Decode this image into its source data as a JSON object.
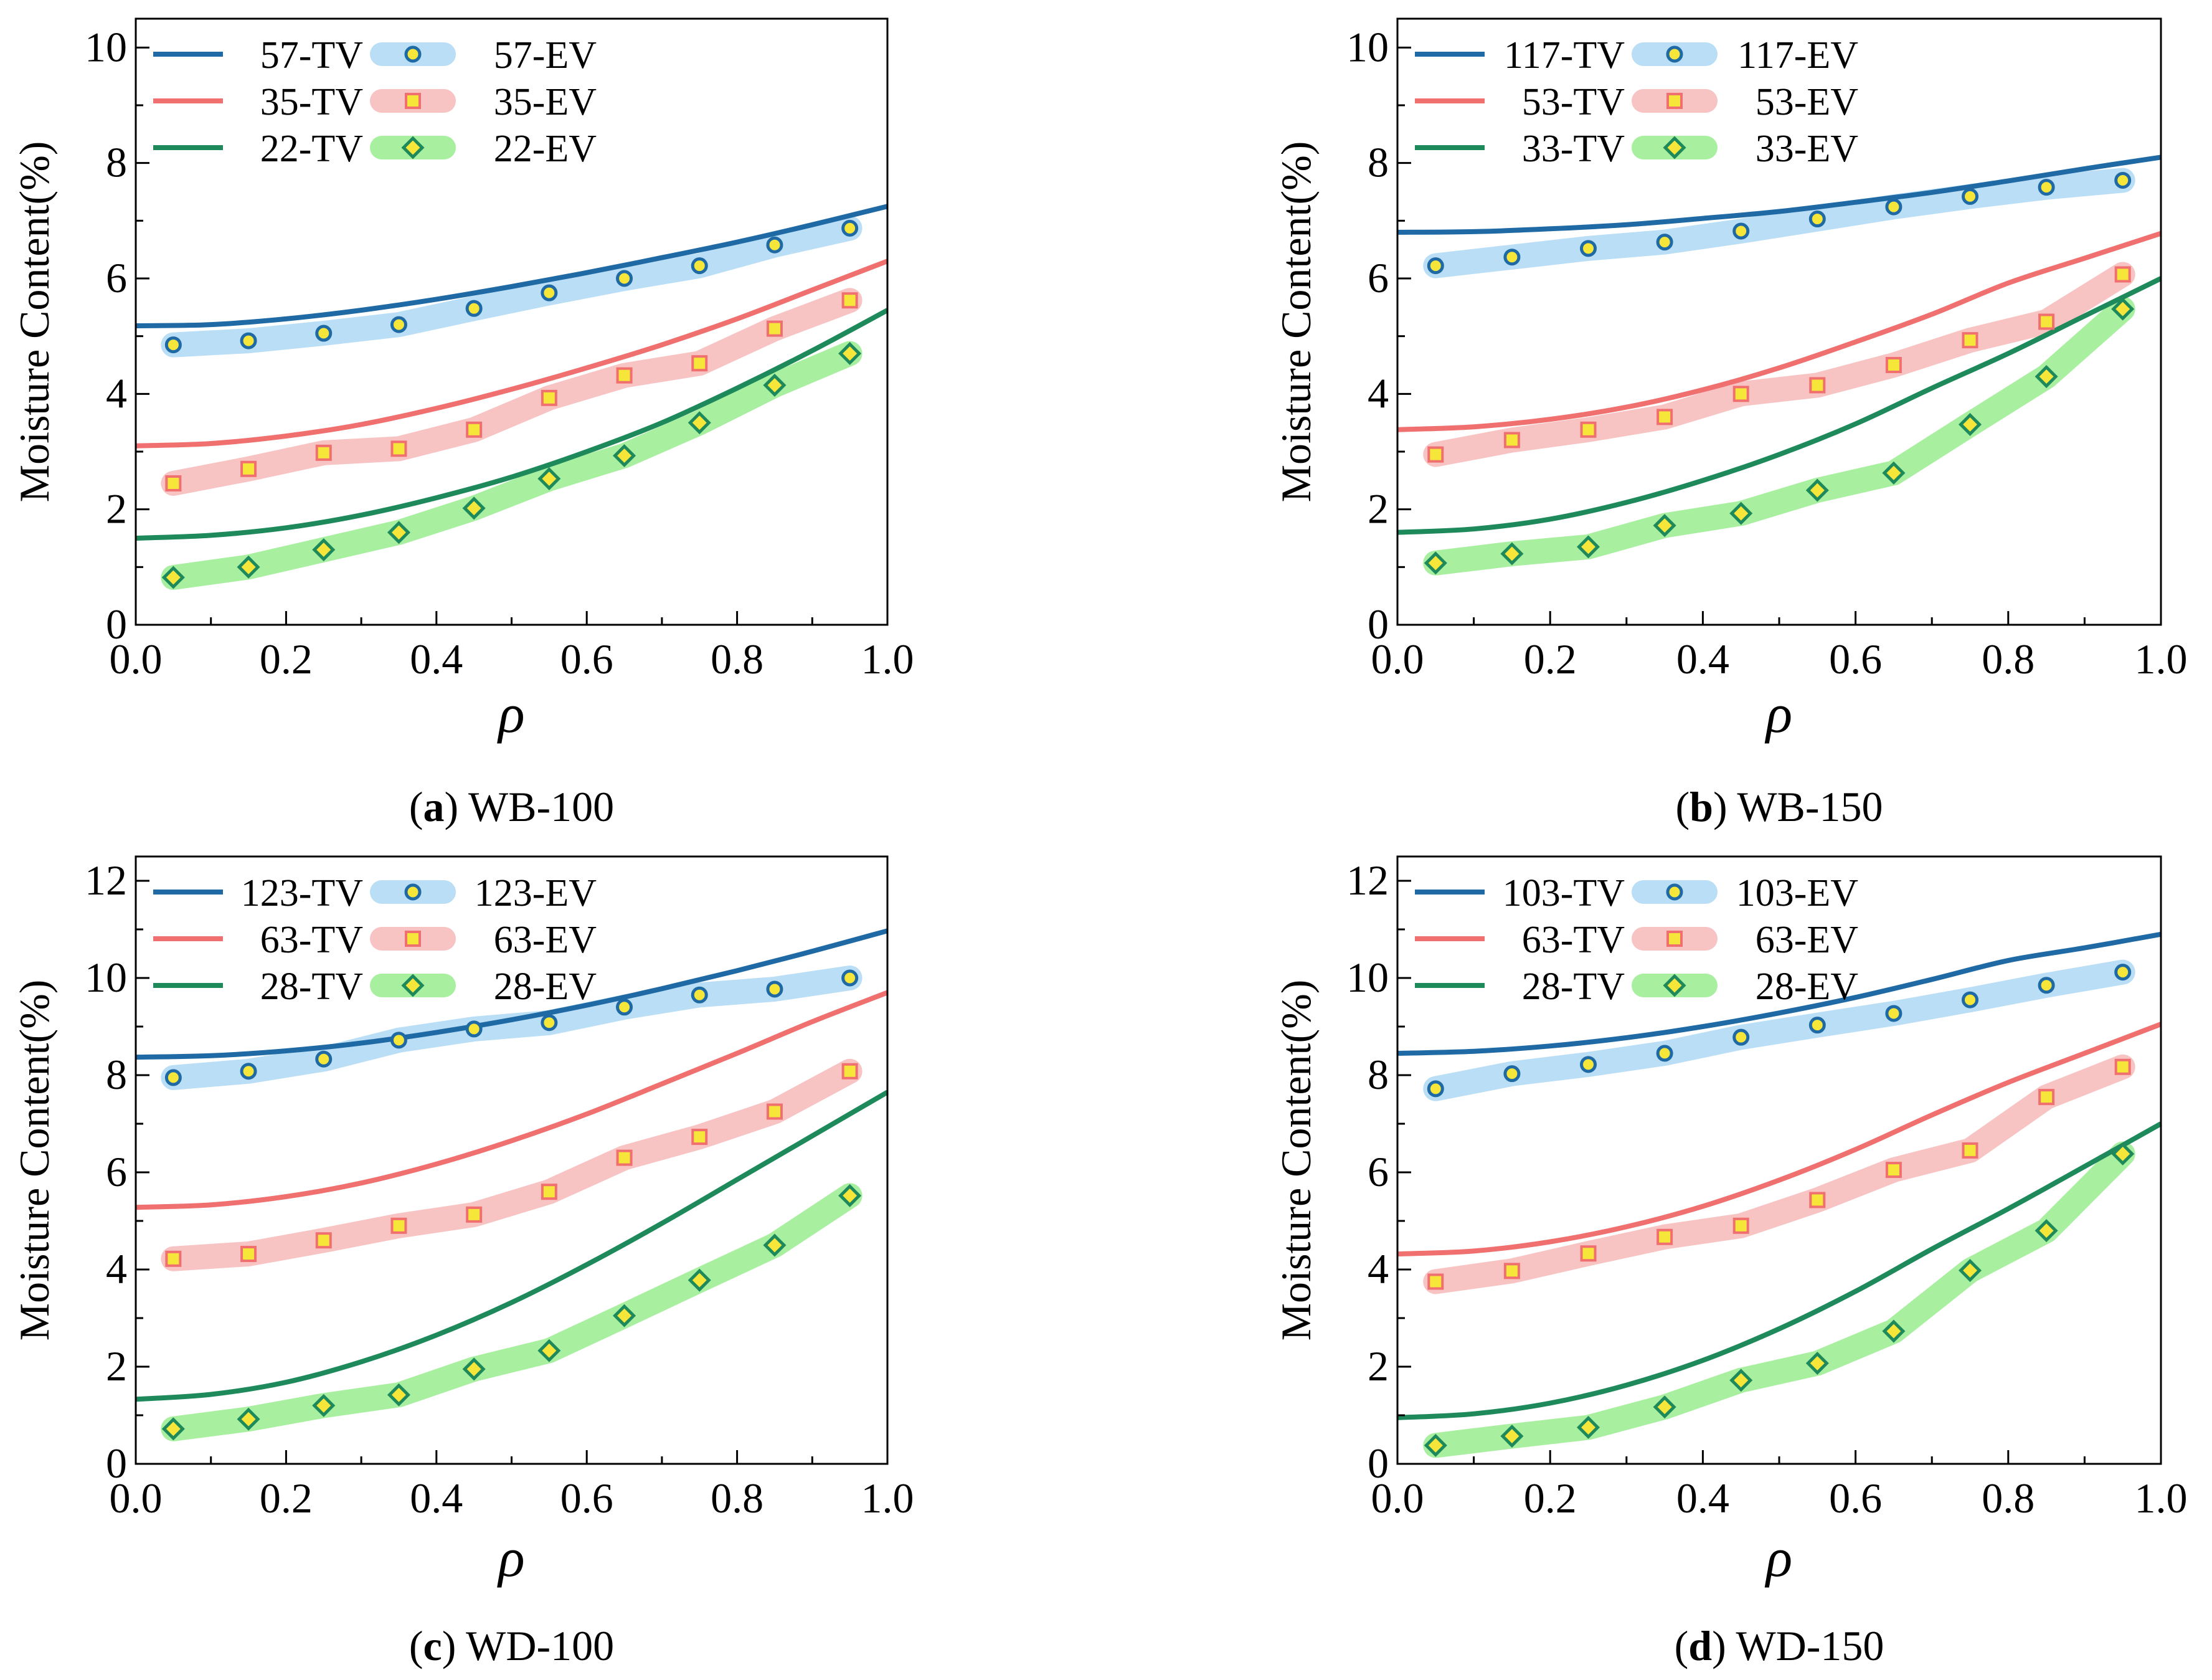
{
  "chart_data": [
    {
      "type": "line",
      "panel_letter": "a",
      "panel_name": "WB-100",
      "xlabel": "ρ",
      "ylabel": "Moisture Content(%)",
      "xlim": [
        0,
        1
      ],
      "ylim": [
        0,
        10.5
      ],
      "xticks": [
        "0.0",
        "0.2",
        "0.4",
        "0.6",
        "0.8",
        "1.0"
      ],
      "yticks": [
        "0",
        "2",
        "4",
        "6",
        "8",
        "10"
      ],
      "grid": false,
      "legend_position": "top-left",
      "tv_series": [
        {
          "name": "57-TV",
          "color": "#1f6aa5",
          "x": [
            0,
            0.1,
            0.2,
            0.3,
            0.4,
            0.5,
            0.6,
            0.7,
            0.8,
            0.9,
            1.0
          ],
          "y": [
            5.18,
            5.2,
            5.3,
            5.45,
            5.64,
            5.86,
            6.1,
            6.36,
            6.63,
            6.93,
            7.25
          ]
        },
        {
          "name": "35-TV",
          "color": "#f07070",
          "x": [
            0,
            0.1,
            0.2,
            0.3,
            0.4,
            0.5,
            0.6,
            0.7,
            0.8,
            0.9,
            1.0
          ],
          "y": [
            3.1,
            3.14,
            3.27,
            3.47,
            3.75,
            4.08,
            4.45,
            4.85,
            5.3,
            5.8,
            6.3
          ]
        },
        {
          "name": "22-TV",
          "color": "#1e8a5c",
          "x": [
            0,
            0.1,
            0.2,
            0.3,
            0.4,
            0.5,
            0.6,
            0.7,
            0.8,
            0.9,
            1.0
          ],
          "y": [
            1.5,
            1.55,
            1.68,
            1.9,
            2.2,
            2.56,
            3.0,
            3.5,
            4.1,
            4.75,
            5.45
          ]
        }
      ],
      "ev_series": [
        {
          "name": "57-EV",
          "band_color": "#b9def5",
          "marker": "circle",
          "x": [
            0.05,
            0.15,
            0.25,
            0.35,
            0.45,
            0.55,
            0.65,
            0.75,
            0.85,
            0.95
          ],
          "y": [
            4.85,
            4.92,
            5.05,
            5.2,
            5.48,
            5.75,
            6.0,
            6.22,
            6.58,
            6.87
          ]
        },
        {
          "name": "35-EV",
          "band_color": "#f8c3c3",
          "marker": "square",
          "x": [
            0.05,
            0.15,
            0.25,
            0.35,
            0.45,
            0.55,
            0.65,
            0.75,
            0.85,
            0.95
          ],
          "y": [
            2.45,
            2.7,
            2.98,
            3.05,
            3.38,
            3.93,
            4.32,
            4.53,
            5.13,
            5.62
          ]
        },
        {
          "name": "22-EV",
          "band_color": "#a8f0a0",
          "marker": "diamond",
          "x": [
            0.05,
            0.15,
            0.25,
            0.35,
            0.45,
            0.55,
            0.65,
            0.75,
            0.85,
            0.95
          ],
          "y": [
            0.82,
            1.0,
            1.3,
            1.6,
            2.02,
            2.53,
            2.93,
            3.5,
            4.15,
            4.7
          ]
        }
      ]
    },
    {
      "type": "line",
      "panel_letter": "b",
      "panel_name": "WB-150",
      "xlabel": "ρ",
      "ylabel": "Moisture Content(%)",
      "xlim": [
        0,
        1
      ],
      "ylim": [
        0,
        10.5
      ],
      "xticks": [
        "0.0",
        "0.2",
        "0.4",
        "0.6",
        "0.8",
        "1.0"
      ],
      "yticks": [
        "0",
        "2",
        "4",
        "6",
        "8",
        "10"
      ],
      "grid": false,
      "legend_position": "top-left",
      "tv_series": [
        {
          "name": "117-TV",
          "color": "#1f6aa5",
          "x": [
            0,
            0.1,
            0.2,
            0.3,
            0.4,
            0.5,
            0.6,
            0.7,
            0.8,
            0.9,
            1.0
          ],
          "y": [
            6.8,
            6.81,
            6.86,
            6.93,
            7.04,
            7.16,
            7.32,
            7.49,
            7.69,
            7.9,
            8.1
          ]
        },
        {
          "name": "53-TV",
          "color": "#f07070",
          "x": [
            0,
            0.1,
            0.2,
            0.3,
            0.4,
            0.5,
            0.6,
            0.7,
            0.8,
            0.9,
            1.0
          ],
          "y": [
            3.38,
            3.43,
            3.56,
            3.77,
            4.07,
            4.45,
            4.9,
            5.38,
            5.92,
            6.35,
            6.78
          ]
        },
        {
          "name": "33-TV",
          "color": "#1e8a5c",
          "x": [
            0,
            0.1,
            0.2,
            0.3,
            0.4,
            0.5,
            0.6,
            0.7,
            0.8,
            0.9,
            1.0
          ],
          "y": [
            1.6,
            1.66,
            1.83,
            2.12,
            2.5,
            2.95,
            3.48,
            4.1,
            4.7,
            5.35,
            6.0
          ]
        }
      ],
      "ev_series": [
        {
          "name": "117-EV",
          "band_color": "#b9def5",
          "marker": "circle",
          "x": [
            0.05,
            0.15,
            0.25,
            0.35,
            0.45,
            0.55,
            0.65,
            0.75,
            0.85,
            0.95
          ],
          "y": [
            6.22,
            6.37,
            6.52,
            6.63,
            6.82,
            7.03,
            7.24,
            7.42,
            7.58,
            7.7
          ]
        },
        {
          "name": "53-EV",
          "band_color": "#f8c3c3",
          "marker": "square",
          "x": [
            0.05,
            0.15,
            0.25,
            0.35,
            0.45,
            0.55,
            0.65,
            0.75,
            0.85,
            0.95
          ],
          "y": [
            2.95,
            3.2,
            3.38,
            3.6,
            4.0,
            4.15,
            4.5,
            4.93,
            5.25,
            6.07
          ]
        },
        {
          "name": "33-EV",
          "band_color": "#a8f0a0",
          "marker": "diamond",
          "x": [
            0.05,
            0.15,
            0.25,
            0.35,
            0.45,
            0.55,
            0.65,
            0.75,
            0.85,
            0.95
          ],
          "y": [
            1.07,
            1.23,
            1.35,
            1.72,
            1.93,
            2.33,
            2.63,
            3.47,
            4.3,
            5.47
          ]
        }
      ]
    },
    {
      "type": "line",
      "panel_letter": "c",
      "panel_name": "WD-100",
      "xlabel": "ρ",
      "ylabel": "Moisture Content(%)",
      "xlim": [
        0,
        1
      ],
      "ylim": [
        0,
        12.5
      ],
      "xticks": [
        "0.0",
        "0.2",
        "0.4",
        "0.6",
        "0.8",
        "1.0"
      ],
      "yticks": [
        "0",
        "2",
        "4",
        "6",
        "8",
        "10",
        "12"
      ],
      "grid": false,
      "legend_position": "top-left",
      "tv_series": [
        {
          "name": "123-TV",
          "color": "#1f6aa5",
          "x": [
            0,
            0.1,
            0.2,
            0.3,
            0.4,
            0.5,
            0.6,
            0.7,
            0.8,
            0.9,
            1.0
          ],
          "y": [
            8.37,
            8.4,
            8.5,
            8.66,
            8.88,
            9.14,
            9.44,
            9.78,
            10.15,
            10.55,
            10.97
          ]
        },
        {
          "name": "63-TV",
          "color": "#f07070",
          "x": [
            0,
            0.1,
            0.2,
            0.3,
            0.4,
            0.5,
            0.6,
            0.7,
            0.8,
            0.9,
            1.0
          ],
          "y": [
            5.28,
            5.33,
            5.5,
            5.78,
            6.17,
            6.65,
            7.2,
            7.82,
            8.45,
            9.1,
            9.7
          ]
        },
        {
          "name": "28-TV",
          "color": "#1e8a5c",
          "x": [
            0,
            0.1,
            0.2,
            0.3,
            0.4,
            0.5,
            0.6,
            0.7,
            0.8,
            0.9,
            1.0
          ],
          "y": [
            1.33,
            1.43,
            1.68,
            2.1,
            2.65,
            3.32,
            4.1,
            4.95,
            5.85,
            6.75,
            7.65
          ]
        }
      ],
      "ev_series": [
        {
          "name": "123-EV",
          "band_color": "#b9def5",
          "marker": "circle",
          "x": [
            0.05,
            0.15,
            0.25,
            0.35,
            0.45,
            0.55,
            0.65,
            0.75,
            0.85,
            0.95
          ],
          "y": [
            7.95,
            8.08,
            8.33,
            8.72,
            8.95,
            9.08,
            9.4,
            9.65,
            9.77,
            10.0
          ]
        },
        {
          "name": "63-EV",
          "band_color": "#f8c3c3",
          "marker": "square",
          "x": [
            0.05,
            0.15,
            0.25,
            0.35,
            0.45,
            0.55,
            0.65,
            0.75,
            0.85,
            0.95
          ],
          "y": [
            4.22,
            4.32,
            4.6,
            4.9,
            5.13,
            5.6,
            6.3,
            6.73,
            7.25,
            8.08
          ]
        },
        {
          "name": "28-EV",
          "band_color": "#a8f0a0",
          "marker": "diamond",
          "x": [
            0.05,
            0.15,
            0.25,
            0.35,
            0.45,
            0.55,
            0.65,
            0.75,
            0.85,
            0.95
          ],
          "y": [
            0.72,
            0.92,
            1.2,
            1.42,
            1.95,
            2.33,
            3.05,
            3.78,
            4.5,
            5.52
          ]
        }
      ]
    },
    {
      "type": "line",
      "panel_letter": "d",
      "panel_name": "WD-150",
      "xlabel": "ρ",
      "ylabel": "Moisture Content(%)",
      "xlim": [
        0,
        1
      ],
      "ylim": [
        0,
        12.5
      ],
      "xticks": [
        "0.0",
        "0.2",
        "0.4",
        "0.6",
        "0.8",
        "1.0"
      ],
      "yticks": [
        "0",
        "2",
        "4",
        "6",
        "8",
        "10",
        "12"
      ],
      "grid": false,
      "legend_position": "top-left",
      "tv_series": [
        {
          "name": "103-TV",
          "color": "#1f6aa5",
          "x": [
            0,
            0.1,
            0.2,
            0.3,
            0.4,
            0.5,
            0.6,
            0.7,
            0.8,
            0.9,
            1.0
          ],
          "y": [
            8.45,
            8.49,
            8.6,
            8.77,
            9.0,
            9.28,
            9.6,
            9.97,
            10.36,
            10.62,
            10.9
          ]
        },
        {
          "name": "63-TV",
          "color": "#f07070",
          "x": [
            0,
            0.1,
            0.2,
            0.3,
            0.4,
            0.5,
            0.6,
            0.7,
            0.8,
            0.9,
            1.0
          ],
          "y": [
            4.32,
            4.38,
            4.57,
            4.88,
            5.3,
            5.84,
            6.47,
            7.18,
            7.85,
            8.45,
            9.05
          ]
        },
        {
          "name": "28-TV",
          "color": "#1e8a5c",
          "x": [
            0,
            0.1,
            0.2,
            0.3,
            0.4,
            0.5,
            0.6,
            0.7,
            0.8,
            0.9,
            1.0
          ],
          "y": [
            0.95,
            1.03,
            1.25,
            1.62,
            2.13,
            2.78,
            3.55,
            4.42,
            5.25,
            6.12,
            7.0
          ]
        }
      ],
      "ev_series": [
        {
          "name": "103-EV",
          "band_color": "#b9def5",
          "marker": "circle",
          "x": [
            0.05,
            0.15,
            0.25,
            0.35,
            0.45,
            0.55,
            0.65,
            0.75,
            0.85,
            0.95
          ],
          "y": [
            7.72,
            8.03,
            8.22,
            8.45,
            8.78,
            9.03,
            9.27,
            9.55,
            9.85,
            10.12
          ]
        },
        {
          "name": "63-EV",
          "band_color": "#f8c3c3",
          "marker": "square",
          "x": [
            0.05,
            0.15,
            0.25,
            0.35,
            0.45,
            0.55,
            0.65,
            0.75,
            0.85,
            0.95
          ],
          "y": [
            3.75,
            3.97,
            4.33,
            4.67,
            4.9,
            5.43,
            6.05,
            6.45,
            7.55,
            8.17
          ]
        },
        {
          "name": "28-EV",
          "band_color": "#a8f0a0",
          "marker": "diamond",
          "x": [
            0.05,
            0.15,
            0.25,
            0.35,
            0.45,
            0.55,
            0.65,
            0.75,
            0.85,
            0.95
          ],
          "y": [
            0.38,
            0.57,
            0.75,
            1.17,
            1.72,
            2.07,
            2.73,
            3.98,
            4.8,
            6.38
          ]
        }
      ]
    }
  ],
  "style": {
    "marker_edge_color": "#1f6aa5",
    "marker_fills": {
      "circle": "#f6e63a",
      "square": "#f6e63a",
      "diamond": "#f6e63a"
    },
    "marker_edges": {
      "circle": "#1f6aa5",
      "square": "#f07070",
      "diamond": "#1e8a5c"
    },
    "axis_color": "#000000"
  }
}
